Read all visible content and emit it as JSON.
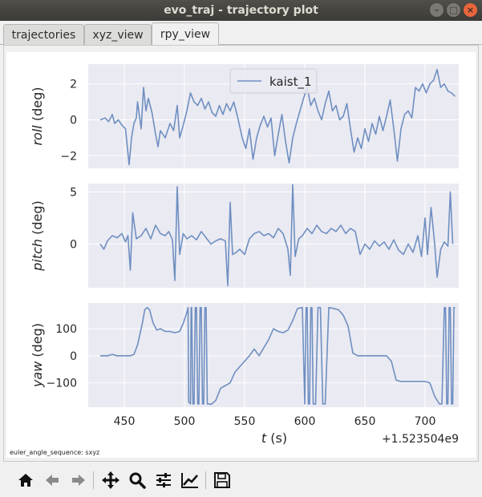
{
  "window": {
    "title": "evo_traj - trajectory plot"
  },
  "tabs": [
    {
      "label": "trajectories",
      "active": false
    },
    {
      "label": "xyz_view",
      "active": false
    },
    {
      "label": "rpy_view",
      "active": true
    }
  ],
  "footnote": "euler_angle_sequence: sxyz",
  "toolbar": {
    "icons": [
      "home-icon",
      "back-arrow-icon",
      "forward-arrow-icon",
      "pan-move-icon",
      "zoom-magnifier-icon",
      "configure-subplots-icon",
      "edit-axis-line-icon",
      "save-floppy-icon"
    ]
  },
  "colors": {
    "line": "#6f8fc1",
    "axes_bg": "#eaeaf2",
    "grid": "#ffffff"
  },
  "chart_data": [
    {
      "type": "line",
      "ylabel": {
        "italic": "roll",
        "unit": " (deg)"
      },
      "ylim": [
        -2.7,
        3.1
      ],
      "yticks": [
        2,
        0,
        -2
      ],
      "ytick_labels": [
        "2",
        "0",
        "−2"
      ],
      "xlim": [
        420,
        728
      ],
      "legend": {
        "label": "kaist_1",
        "placement": "top-center"
      },
      "series": [
        {
          "name": "kaist_1",
          "x": [
            430,
            434,
            437,
            440,
            442,
            445,
            448,
            451,
            454,
            456,
            458,
            460,
            461,
            464,
            466,
            468,
            470,
            473,
            476,
            478,
            480,
            484,
            488,
            491,
            494,
            496,
            499,
            502,
            505,
            508,
            511,
            514,
            517,
            520,
            523,
            526,
            529,
            532,
            535,
            538,
            541,
            544,
            548,
            551,
            554,
            557,
            560,
            563,
            566,
            569,
            572,
            575,
            578,
            581,
            584,
            587,
            590,
            593,
            596,
            599,
            602,
            605,
            608,
            611,
            614,
            617,
            620,
            623,
            626,
            629,
            632,
            635,
            638,
            641,
            644,
            647,
            650,
            653,
            656,
            659,
            662,
            665,
            668,
            671,
            674,
            677,
            680,
            683,
            686,
            689,
            692,
            695,
            698,
            701,
            704,
            707,
            710,
            713,
            716,
            719,
            722,
            725
          ],
          "y": [
            0.0,
            0.1,
            -0.1,
            0.3,
            -0.2,
            0.0,
            -0.3,
            -0.5,
            -2.5,
            -1.0,
            -0.2,
            0.1,
            1.0,
            -0.5,
            1.8,
            0.5,
            1.2,
            0.4,
            -0.8,
            -1.5,
            -0.6,
            -1.0,
            -0.2,
            -0.6,
            0.8,
            -1.0,
            -0.3,
            0.5,
            1.5,
            1.0,
            0.8,
            1.2,
            0.6,
            1.0,
            0.4,
            0.2,
            0.8,
            0.3,
            0.9,
            0.5,
            1.0,
            0.2,
            -1.0,
            -1.6,
            -0.5,
            -2.2,
            -1.0,
            -0.3,
            0.2,
            -0.4,
            0.1,
            -2.0,
            -0.8,
            0.3,
            -1.2,
            -2.4,
            -1.0,
            -0.2,
            0.5,
            1.2,
            1.8,
            0.8,
            1.2,
            0.5,
            0.0,
            0.9,
            1.6,
            0.5,
            0.8,
            0.0,
            0.2,
            0.9,
            -0.5,
            -1.8,
            -1.0,
            -1.6,
            -0.5,
            -1.2,
            -0.2,
            -0.8,
            0.2,
            -0.6,
            0.2,
            1.1,
            -0.5,
            -2.3,
            -0.5,
            0.3,
            0.5,
            0.1,
            1.8,
            1.6,
            2.0,
            1.5,
            2.0,
            2.2,
            2.8,
            1.8,
            2.0,
            1.6,
            1.5,
            1.3
          ]
        }
      ],
      "xticks_shown": false
    },
    {
      "type": "line",
      "ylabel": {
        "italic": "pitch",
        "unit": " (deg)"
      },
      "ylim": [
        -4.2,
        5.8
      ],
      "yticks": [
        5,
        0
      ],
      "ytick_labels": [
        "5",
        "0"
      ],
      "xlim": [
        420,
        728
      ],
      "series": [
        {
          "name": "kaist_1",
          "x": [
            430,
            433,
            436,
            440,
            444,
            448,
            451,
            453,
            455,
            457,
            460,
            464,
            468,
            472,
            476,
            480,
            484,
            487,
            490,
            492,
            494,
            496,
            499,
            502,
            506,
            510,
            514,
            518,
            522,
            526,
            530,
            534,
            536,
            538,
            540,
            543,
            546,
            550,
            554,
            558,
            562,
            566,
            570,
            574,
            578,
            582,
            586,
            588,
            590,
            592,
            595,
            598,
            602,
            606,
            610,
            614,
            618,
            622,
            626,
            630,
            634,
            638,
            642,
            646,
            650,
            654,
            658,
            662,
            666,
            670,
            674,
            678,
            682,
            686,
            690,
            694,
            697,
            700,
            702,
            705,
            708,
            710,
            713,
            716,
            719,
            721,
            723
          ],
          "y": [
            0.0,
            -0.5,
            0.3,
            0.8,
            0.6,
            1.0,
            0.2,
            0.8,
            -2.5,
            3.0,
            0.5,
            0.8,
            1.5,
            0.5,
            1.8,
            1.0,
            0.8,
            1.2,
            0.4,
            -3.5,
            5.5,
            -1.0,
            1.0,
            0.5,
            0.8,
            0.4,
            1.2,
            0.6,
            0.0,
            0.3,
            0.5,
            0.3,
            -4.0,
            4.0,
            -1.0,
            -0.8,
            -0.5,
            -1.0,
            0.5,
            1.0,
            1.2,
            0.8,
            1.0,
            0.6,
            1.5,
            1.0,
            -0.5,
            -3.0,
            5.7,
            -1.2,
            0.5,
            0.8,
            1.5,
            1.0,
            1.8,
            1.2,
            1.0,
            1.5,
            1.2,
            1.8,
            1.0,
            1.5,
            1.2,
            -1.0,
            0.0,
            -0.5,
            0.3,
            -0.2,
            0.2,
            -0.5,
            0.4,
            -0.6,
            -1.0,
            0.0,
            -0.8,
            0.8,
            -1.2,
            2.5,
            -1.0,
            3.5,
            0.0,
            -3.2,
            -0.5,
            0.2,
            -0.2,
            5.0,
            0.0
          ]
        }
      ],
      "xticks_shown": false
    },
    {
      "type": "line",
      "ylabel": {
        "italic": "yaw",
        "unit": " (deg)"
      },
      "ylim": [
        -190,
        195
      ],
      "yticks": [
        100,
        0,
        -100
      ],
      "ytick_labels": [
        "100",
        "0",
        "−100"
      ],
      "xlim": [
        420,
        728
      ],
      "xticks": [
        450,
        500,
        550,
        600,
        650,
        700
      ],
      "xtick_labels": [
        "450",
        "500",
        "550",
        "600",
        "650",
        "700"
      ],
      "xlabel": {
        "italic": "t",
        "unit": " (s)"
      },
      "offset_text": "+1.523504e9",
      "series": [
        {
          "name": "kaist_1",
          "x": [
            430,
            433,
            436,
            440,
            444,
            448,
            452,
            455,
            458,
            461,
            463,
            465,
            467,
            469,
            471,
            474,
            477,
            480,
            484,
            488,
            492,
            496,
            499,
            502,
            503,
            503.5,
            505,
            505.5,
            506,
            507,
            508,
            509,
            510,
            511,
            512,
            513,
            514,
            515,
            516,
            517,
            518,
            519,
            520,
            521,
            522,
            526,
            530,
            534,
            538,
            542,
            546,
            550,
            554,
            558,
            562,
            566,
            570,
            574,
            578,
            582,
            586,
            590,
            594,
            598,
            600,
            601,
            602,
            603,
            604,
            605,
            606,
            607,
            609,
            611,
            613,
            615,
            617,
            620,
            624,
            628,
            632,
            636,
            640,
            644,
            648,
            652,
            656,
            660,
            664,
            668,
            672,
            676,
            680,
            684,
            688,
            692,
            696,
            700,
            704,
            708,
            712,
            714,
            716,
            717,
            718,
            719,
            720,
            721,
            722,
            723,
            724,
            725
          ],
          "y": [
            0,
            0,
            0,
            5,
            0,
            0,
            0,
            0,
            5,
            40,
            80,
            120,
            170,
            178,
            170,
            120,
            95,
            100,
            90,
            90,
            85,
            90,
            120,
            160,
            178,
            -170,
            -178,
            178,
            178,
            -178,
            -178,
            178,
            178,
            -178,
            -178,
            178,
            178,
            -178,
            -178,
            178,
            178,
            -178,
            -178,
            -178,
            -180,
            -165,
            -120,
            -110,
            -100,
            -60,
            -40,
            -20,
            0,
            25,
            0,
            30,
            60,
            100,
            90,
            85,
            95,
            130,
            175,
            178,
            -178,
            178,
            178,
            -178,
            -178,
            178,
            178,
            -178,
            -178,
            178,
            178,
            -178,
            -178,
            178,
            175,
            170,
            150,
            110,
            10,
            0,
            0,
            0,
            0,
            0,
            0,
            0,
            -20,
            -90,
            -95,
            -95,
            -95,
            -95,
            -95,
            -95,
            -100,
            -150,
            -178,
            -178,
            178,
            178,
            -178,
            -178,
            178,
            178,
            -178,
            -178,
            178,
            178
          ]
        }
      ]
    }
  ]
}
